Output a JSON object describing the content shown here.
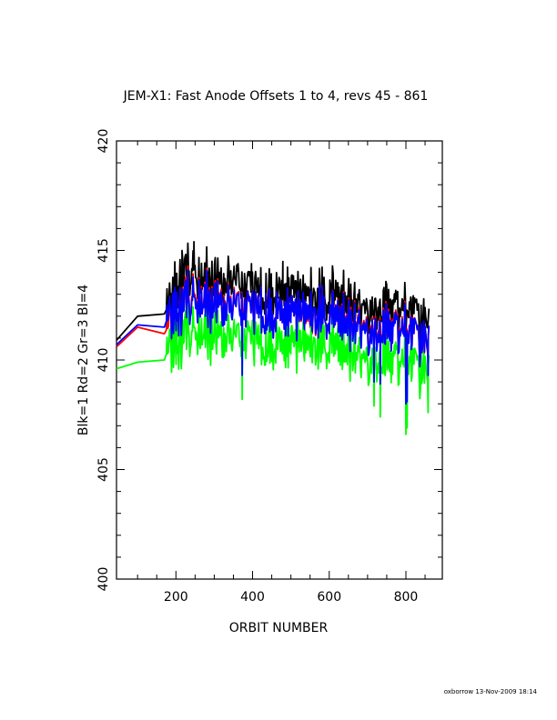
{
  "footer": "oxborrow 13-Nov-2009 18:14",
  "chart_data": {
    "type": "line",
    "title": "JEM-X1: Fast Anode Offsets 1 to 4, revs 45 - 861",
    "xlabel": "ORBIT NUMBER",
    "ylabel": "Blk=1 Rd=2 Gr=3 Bl=4",
    "xlim": [
      45,
      895
    ],
    "ylim": [
      400,
      420
    ],
    "x_ticks": [
      "200",
      "400",
      "600",
      "800"
    ],
    "y_ticks": [
      "400",
      "405",
      "410",
      "415",
      "420"
    ],
    "grid": false,
    "series_info": [
      {
        "color": "#000000"
      },
      {
        "color": "#ff0000"
      },
      {
        "color": "#00ff00"
      },
      {
        "color": "#0000ff"
      }
    ],
    "profiles": {
      "x": [
        45,
        100,
        170,
        175,
        200,
        230,
        260,
        300,
        350,
        400,
        450,
        500,
        550,
        600,
        650,
        700,
        750,
        800,
        830,
        861
      ],
      "Blk": [
        410.9,
        412.0,
        412.1,
        412.2,
        413.0,
        414.2,
        413.6,
        413.4,
        413.3,
        413.0,
        412.9,
        413.1,
        412.9,
        412.8,
        412.6,
        412.4,
        412.3,
        412.1,
        411.8,
        411.3
      ],
      "Rd": [
        410.6,
        411.5,
        411.2,
        411.5,
        412.1,
        413.2,
        412.7,
        412.6,
        412.4,
        412.2,
        412.1,
        412.3,
        412.1,
        412.0,
        411.9,
        411.6,
        411.5,
        411.3,
        411.0,
        410.5
      ],
      "Gr": [
        409.6,
        409.9,
        410.0,
        410.4,
        410.7,
        411.6,
        411.2,
        411.1,
        410.9,
        410.8,
        410.7,
        410.9,
        410.8,
        410.7,
        410.5,
        410.2,
        410.0,
        409.8,
        409.6,
        409.2
      ],
      "Bl": [
        410.7,
        411.6,
        411.5,
        411.9,
        412.2,
        413.0,
        412.6,
        412.5,
        412.3,
        412.2,
        412.1,
        412.3,
        412.2,
        412.0,
        411.8,
        411.5,
        411.4,
        411.2,
        411.0,
        410.6
      ]
    },
    "noise_amplitude": 0.9,
    "deep_dips": [
      {
        "x": 373,
        "Gr": 408.2,
        "Bl": 409.3
      },
      {
        "x": 717,
        "Gr": 407.9,
        "Bl": 409.0
      },
      {
        "x": 733,
        "Gr": 407.4,
        "Bl": 408.9
      },
      {
        "x": 800,
        "Gr": 406.6,
        "Bl": 408.0
      },
      {
        "x": 803,
        "Gr": 406.9,
        "Bl": 408.1
      },
      {
        "x": 858,
        "Gr": 407.6,
        "Bl": 409.3
      }
    ],
    "spikes": [
      {
        "x": 216,
        "Blk": 415.0
      },
      {
        "x": 232,
        "Blk": 414.8
      },
      {
        "x": 247,
        "Blk": 415.4
      },
      {
        "x": 362,
        "Blk": 414.4
      },
      {
        "x": 397,
        "Blk": 414.4
      },
      {
        "x": 479,
        "Blk": 414.5
      }
    ]
  }
}
